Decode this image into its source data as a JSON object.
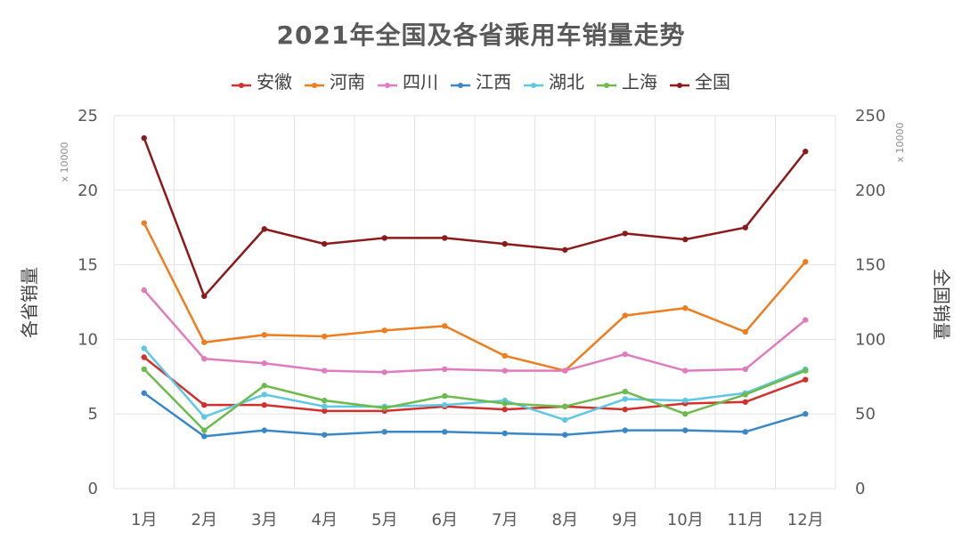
{
  "chart_data": {
    "type": "line",
    "title": "2021年全国及各省乘用车销量走势",
    "categories": [
      "1月",
      "2月",
      "3月",
      "4月",
      "5月",
      "6月",
      "7月",
      "8月",
      "9月",
      "10月",
      "11月",
      "12月"
    ],
    "y_left": {
      "label": "各省销量",
      "ylim": [
        0,
        25
      ],
      "ticks": [
        0,
        5,
        10,
        15,
        20,
        25
      ],
      "multiplier": "x 10000"
    },
    "y_right": {
      "label": "全国销量",
      "ylim": [
        0,
        250
      ],
      "ticks": [
        0,
        50,
        100,
        150,
        200,
        250
      ],
      "multiplier": "x 10000"
    },
    "grid": true,
    "legend_position": "top",
    "series": [
      {
        "name": "安徽",
        "color": "#d0312d",
        "axis": "left",
        "values": [
          8.8,
          5.6,
          5.6,
          5.2,
          5.2,
          5.5,
          5.3,
          5.5,
          5.3,
          5.7,
          5.8,
          7.3
        ]
      },
      {
        "name": "河南",
        "color": "#ee7d1f",
        "axis": "left",
        "values": [
          17.8,
          9.8,
          10.3,
          10.2,
          10.6,
          10.9,
          8.9,
          7.9,
          11.6,
          12.1,
          10.5,
          15.2
        ]
      },
      {
        "name": "四川",
        "color": "#e07bbd",
        "axis": "left",
        "values": [
          13.3,
          8.7,
          8.4,
          7.9,
          7.8,
          8.0,
          7.9,
          7.9,
          9.0,
          7.9,
          8.0,
          11.3
        ]
      },
      {
        "name": "江西",
        "color": "#3a87c8",
        "axis": "left",
        "values": [
          6.4,
          3.5,
          3.9,
          3.6,
          3.8,
          3.8,
          3.7,
          3.6,
          3.9,
          3.9,
          3.8,
          5.0
        ]
      },
      {
        "name": "湖北",
        "color": "#5ec8e4",
        "axis": "left",
        "values": [
          9.4,
          4.8,
          6.3,
          5.5,
          5.5,
          5.6,
          5.9,
          4.6,
          6.0,
          5.9,
          6.4,
          8.0
        ]
      },
      {
        "name": "上海",
        "color": "#6cbb4c",
        "axis": "left",
        "values": [
          8.0,
          3.9,
          6.9,
          5.9,
          5.4,
          6.2,
          5.7,
          5.5,
          6.5,
          5.0,
          6.3,
          7.9
        ]
      },
      {
        "name": "全国",
        "color": "#8b1a1a",
        "axis": "right",
        "values": [
          235,
          129,
          174,
          164,
          168,
          168,
          164,
          160,
          171,
          167,
          175,
          226
        ]
      }
    ]
  }
}
